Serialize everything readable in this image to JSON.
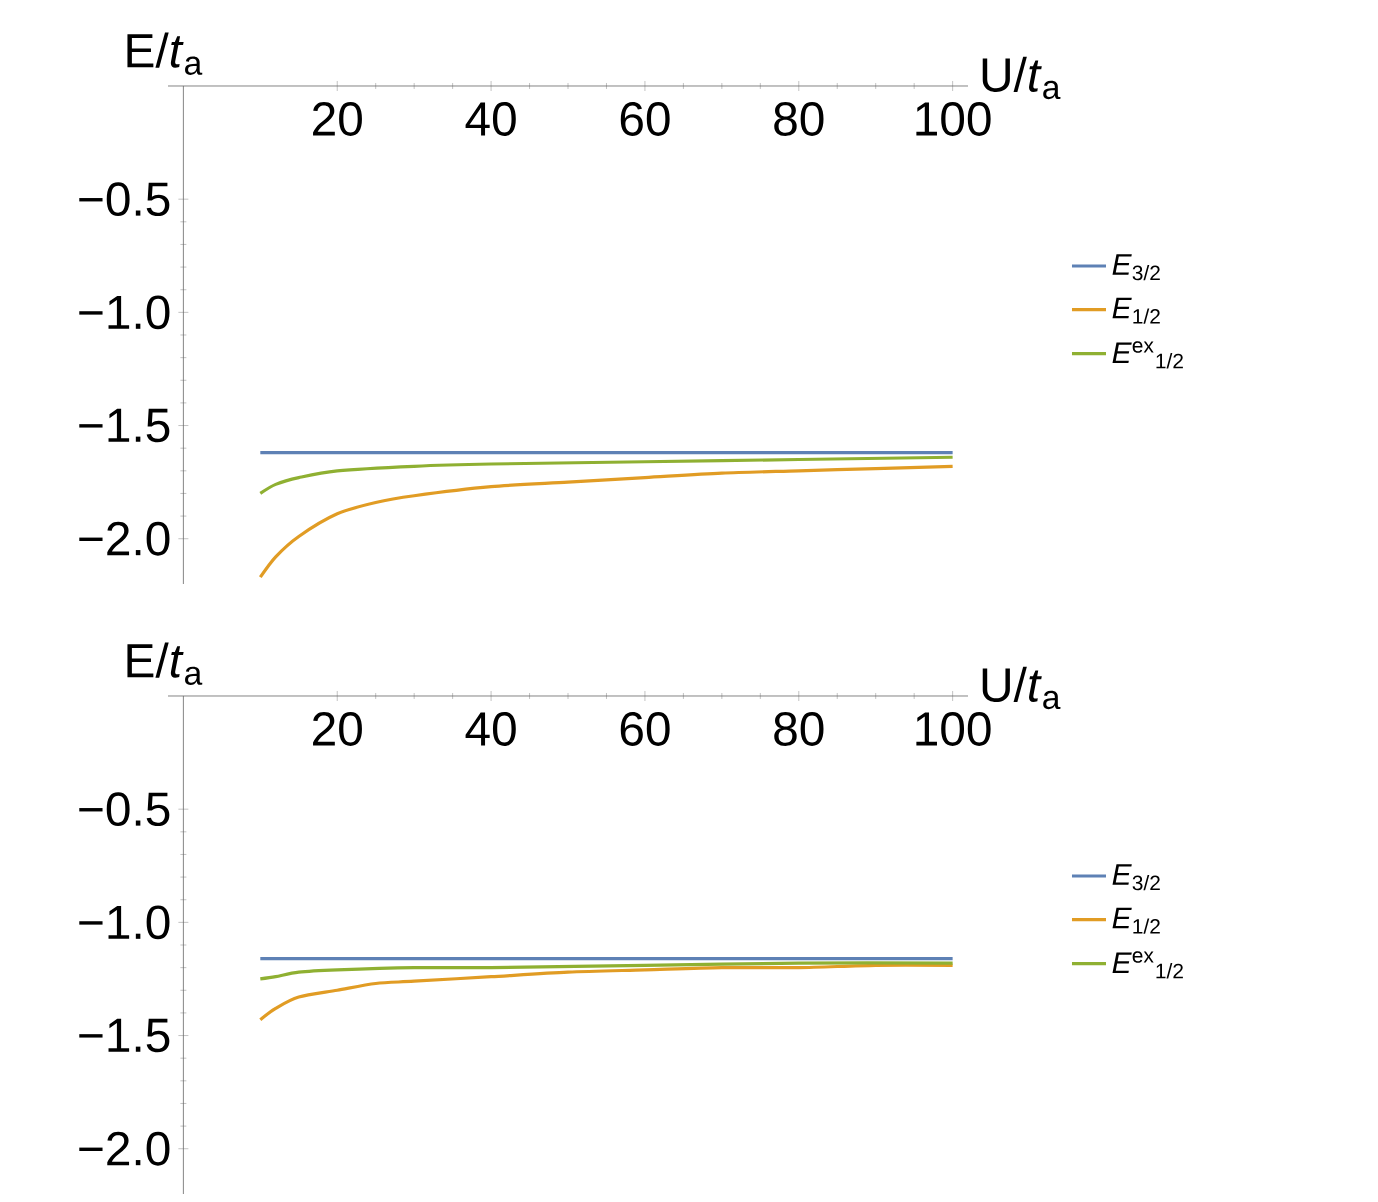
{
  "chart_data": [
    {
      "type": "line",
      "xlabel": "U/*t*$_{a}$",
      "ylabel": "E/*t*$_{a}$",
      "xlim": [
        -2,
        102
      ],
      "ylim": [
        -2.2,
        0
      ],
      "xticks": [
        20,
        40,
        60,
        80,
        100
      ],
      "yticks": [
        {
          "value": -0.5,
          "label": "−0.5"
        },
        {
          "value": -1.0,
          "label": "−1.0"
        },
        {
          "value": -1.5,
          "label": "−1.5"
        },
        {
          "value": -2.0,
          "label": "−2.0"
        }
      ],
      "legend": "right",
      "series": [
        {
          "name": "*E*$_{3/2}$",
          "color": "#5e81b5",
          "x": [
            10,
            100
          ],
          "values": [
            -1.62,
            -1.62
          ]
        },
        {
          "name": "*E*$_{1/2}$",
          "color": "#e19c24",
          "x": [
            10,
            12,
            15,
            20,
            25,
            30,
            40,
            50,
            60,
            70,
            80,
            90,
            100
          ],
          "values": [
            -2.17,
            -2.08,
            -1.99,
            -1.89,
            -1.84,
            -1.81,
            -1.77,
            -1.75,
            -1.73,
            -1.71,
            -1.7,
            -1.69,
            -1.68
          ]
        },
        {
          "name": "*E*$^{ex}$$_{1/2}$",
          "color": "#8fb032",
          "x": [
            10,
            12,
            15,
            20,
            30,
            40,
            60,
            80,
            100
          ],
          "values": [
            -1.8,
            -1.76,
            -1.73,
            -1.7,
            -1.68,
            -1.67,
            -1.66,
            -1.65,
            -1.64
          ]
        }
      ]
    },
    {
      "type": "line",
      "xlabel": "U/*t*$_{a}$",
      "ylabel": "E/*t*$_{a}$",
      "xlim": [
        -2,
        102
      ],
      "ylim": [
        -2.2,
        0
      ],
      "xticks": [
        20,
        40,
        60,
        80,
        100
      ],
      "yticks": [
        {
          "value": -0.5,
          "label": "−0.5"
        },
        {
          "value": -1.0,
          "label": "−1.0"
        },
        {
          "value": -1.5,
          "label": "−1.5"
        },
        {
          "value": -2.0,
          "label": "−2.0"
        }
      ],
      "legend": "right",
      "series": [
        {
          "name": "*E*$_{3/2}$",
          "color": "#5e81b5",
          "x": [
            10,
            100
          ],
          "values": [
            -1.16,
            -1.16
          ]
        },
        {
          "name": "*E*$_{1/2}$",
          "color": "#e19c24",
          "x": [
            10,
            12,
            15,
            20,
            25,
            30,
            40,
            50,
            60,
            70,
            80,
            90,
            100
          ],
          "values": [
            -1.43,
            -1.38,
            -1.33,
            -1.3,
            -1.27,
            -1.26,
            -1.24,
            -1.22,
            -1.21,
            -1.2,
            -1.2,
            -1.19,
            -1.19
          ]
        },
        {
          "name": "*E*$^{ex}$$_{1/2}$",
          "color": "#8fb032",
          "x": [
            10,
            12,
            15,
            20,
            30,
            40,
            60,
            80,
            100
          ],
          "values": [
            -1.25,
            -1.24,
            -1.22,
            -1.21,
            -1.2,
            -1.2,
            -1.19,
            -1.18,
            -1.18
          ]
        }
      ]
    }
  ]
}
